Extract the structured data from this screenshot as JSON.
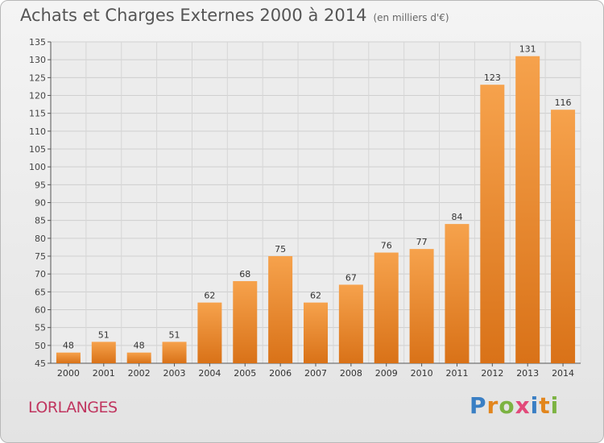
{
  "header": {
    "title": "Achats et Charges Externes 2000 à 2014",
    "subtitle": "(en milliers d'€)"
  },
  "footer": {
    "place": "LORLANGES",
    "logo_letters": [
      {
        "ch": "P",
        "color": "#3a7fc4"
      },
      {
        "ch": "r",
        "color": "#e2861d"
      },
      {
        "ch": "o",
        "color": "#7cb342"
      },
      {
        "ch": "x",
        "color": "#e24a7a"
      },
      {
        "ch": "i",
        "color": "#3a7fc4"
      },
      {
        "ch": "t",
        "color": "#e2861d"
      },
      {
        "ch": "i",
        "color": "#7cb342"
      }
    ]
  },
  "chart_data": {
    "type": "bar",
    "categories": [
      "2000",
      "2001",
      "2002",
      "2003",
      "2004",
      "2005",
      "2006",
      "2007",
      "2008",
      "2009",
      "2010",
      "2011",
      "2012",
      "2013",
      "2014"
    ],
    "values": [
      48,
      51,
      48,
      51,
      62,
      68,
      75,
      62,
      67,
      76,
      77,
      84,
      123,
      131,
      116
    ],
    "ylim": [
      45,
      135
    ],
    "yticks": [
      45,
      50,
      55,
      60,
      65,
      70,
      75,
      80,
      85,
      90,
      95,
      100,
      105,
      110,
      115,
      120,
      125,
      130,
      135
    ],
    "grid": true,
    "bar_color_top": "#f6a24c",
    "bar_color_bottom": "#d97218"
  }
}
